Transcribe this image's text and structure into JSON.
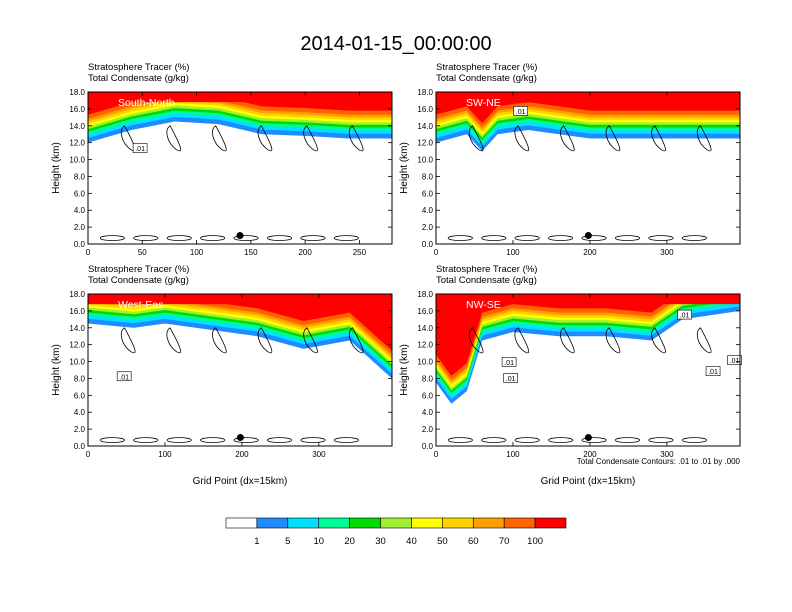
{
  "title": "2014-01-15_00:00:00",
  "panel_header_line1": "Stratosphere Tracer   (%)",
  "panel_header_line2": "Total Condensate   (g/kg)",
  "y_axis_label": "Height (km)",
  "x_axis_label": "Grid Point (dx=15km)",
  "contour_note": "Total Condensate Contours: .01 to .01 by .000",
  "colors": {
    "levels": [
      "#ffffff",
      "#1e8cff",
      "#00e1ff",
      "#00fa96",
      "#00dc00",
      "#a0f032",
      "#ffff00",
      "#ffd200",
      "#ffa000",
      "#ff6400",
      "#ff0000"
    ]
  },
  "chart_data": [
    {
      "type": "heatmap",
      "id": "south-north",
      "label": "South-North",
      "title_lines": [
        "Stratosphere Tracer   (%)",
        "Total Condensate   (g/kg)"
      ],
      "xlim": [
        0,
        280
      ],
      "ylim": [
        0,
        18
      ],
      "xticks": [
        0,
        50,
        100,
        150,
        200,
        250
      ],
      "xtick_labels": [
        "0",
        "50",
        "100",
        "150",
        "200",
        "250"
      ],
      "yticks": [
        0,
        2,
        4,
        6,
        8,
        10,
        12,
        14,
        16,
        18
      ],
      "ytick_labels": [
        "0.0",
        "2.0",
        "4.0",
        "6.0",
        "8.0",
        "10.0",
        "12.0",
        "14.0",
        "16.0",
        "18.0"
      ],
      "show_xlabel": false,
      "tracer_band": {
        "x": [
          0,
          40,
          80,
          120,
          160,
          200,
          240,
          280
        ],
        "base_km": [
          12.0,
          13.5,
          14.5,
          14.2,
          13.0,
          12.8,
          12.5,
          12.5
        ]
      },
      "contour_labels": [
        {
          "text": ".01",
          "x": 48,
          "y": 11.3
        }
      ],
      "marker": {
        "x": 140,
        "y": 1.0
      }
    },
    {
      "type": "heatmap",
      "id": "sw-ne",
      "label": "SW-NE",
      "title_lines": [
        "Stratosphere Tracer   (%)",
        "Total Condensate   (g/kg)"
      ],
      "xlim": [
        0,
        395
      ],
      "ylim": [
        0,
        18
      ],
      "xticks": [
        0,
        100,
        200,
        300
      ],
      "xtick_labels": [
        "0",
        "100",
        "200",
        "300"
      ],
      "yticks": [
        0,
        2,
        4,
        6,
        8,
        10,
        12,
        14,
        16,
        18
      ],
      "ytick_labels": [
        "0.0",
        "2.0",
        "4.0",
        "6.0",
        "8.0",
        "10.0",
        "12.0",
        "14.0",
        "16.0",
        "18.0"
      ],
      "show_xlabel": false,
      "tracer_band": {
        "x": [
          0,
          40,
          60,
          80,
          120,
          160,
          200,
          260,
          320,
          395
        ],
        "base_km": [
          12.0,
          13.0,
          11.0,
          13.0,
          13.5,
          13.0,
          12.5,
          12.5,
          12.5,
          12.5
        ]
      },
      "contour_labels": [
        {
          "text": ".01",
          "x": 110,
          "y": 15.7
        }
      ],
      "marker": {
        "x": 198,
        "y": 1.0
      }
    },
    {
      "type": "heatmap",
      "id": "west-east",
      "label": "West-Eas",
      "title_lines": [
        "Stratosphere Tracer   (%)",
        "Total Condensate   (g/kg)"
      ],
      "xlim": [
        0,
        395
      ],
      "ylim": [
        0,
        18
      ],
      "xticks": [
        0,
        100,
        200,
        300
      ],
      "xtick_labels": [
        "0",
        "100",
        "200",
        "300"
      ],
      "yticks": [
        0,
        2,
        4,
        6,
        8,
        10,
        12,
        14,
        16,
        18
      ],
      "ytick_labels": [
        "0.0",
        "2.0",
        "4.0",
        "6.0",
        "8.0",
        "10.0",
        "12.0",
        "14.0",
        "16.0",
        "18.0"
      ],
      "show_xlabel": true,
      "tracer_band": {
        "x": [
          0,
          60,
          100,
          140,
          180,
          220,
          280,
          340,
          395
        ],
        "base_km": [
          14.5,
          14.0,
          14.5,
          14.0,
          13.5,
          13.0,
          11.5,
          12.5,
          8.0
        ]
      },
      "contour_labels": [
        {
          "text": ".01",
          "x": 47,
          "y": 8.2
        }
      ],
      "marker": {
        "x": 198,
        "y": 1.0
      }
    },
    {
      "type": "heatmap",
      "id": "nw-se",
      "label": "NW-SE",
      "title_lines": [
        "Stratosphere Tracer   (%)",
        "Total Condensate   (g/kg)"
      ],
      "xlim": [
        0,
        395
      ],
      "ylim": [
        0,
        18
      ],
      "xticks": [
        0,
        100,
        200,
        300
      ],
      "xtick_labels": [
        "0",
        "100",
        "200",
        "300"
      ],
      "yticks": [
        0,
        2,
        4,
        6,
        8,
        10,
        12,
        14,
        16,
        18
      ],
      "ytick_labels": [
        "0.0",
        "2.0",
        "4.0",
        "6.0",
        "8.0",
        "10.0",
        "12.0",
        "14.0",
        "16.0",
        "18.0"
      ],
      "show_xlabel": true,
      "tracer_band": {
        "x": [
          0,
          20,
          40,
          60,
          100,
          160,
          220,
          280,
          320,
          395
        ],
        "base_km": [
          7.5,
          5.0,
          6.5,
          12.5,
          13.5,
          13.0,
          13.0,
          12.5,
          15.0,
          16.0
        ]
      },
      "contour_labels": [
        {
          "text": ".01",
          "x": 95,
          "y": 9.9
        },
        {
          "text": ".01",
          "x": 97,
          "y": 8.0
        },
        {
          "text": ".01",
          "x": 323,
          "y": 15.5
        },
        {
          "text": ".01",
          "x": 360,
          "y": 8.8
        },
        {
          "text": ".01",
          "x": 388,
          "y": 10.1
        }
      ],
      "marker": {
        "x": 198,
        "y": 1.0
      }
    }
  ],
  "colorbar": {
    "tick_labels": [
      "1",
      "5",
      "10",
      "20",
      "30",
      "40",
      "50",
      "60",
      "70",
      "100"
    ]
  }
}
